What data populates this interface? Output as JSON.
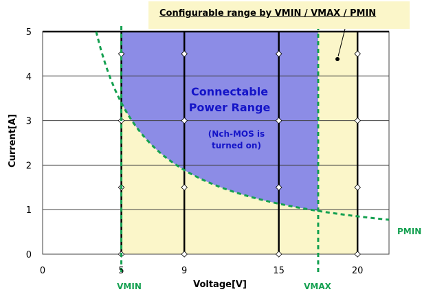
{
  "chart_data": {
    "type": "area",
    "title": "",
    "xlabel": "Voltage[V]",
    "ylabel": "Current[A]",
    "xlim": [
      0,
      22
    ],
    "ylim": [
      0,
      5
    ],
    "x_ticks": [
      {
        "value": 0,
        "label": "0"
      },
      {
        "value": 5,
        "label": "5"
      },
      {
        "value": 9,
        "label": "9"
      },
      {
        "value": 15,
        "label": "15"
      },
      {
        "value": 20,
        "label": "20"
      }
    ],
    "y_ticks": [
      0,
      1,
      2,
      3,
      4,
      5
    ],
    "grid": true,
    "vertical_bold_lines": [
      5,
      9,
      15,
      20
    ],
    "thresholds": {
      "vmin": {
        "label": "VMIN",
        "value": 5
      },
      "vmax": {
        "label": "VMAX",
        "value": 17.5
      },
      "pmin": {
        "label": "PMIN",
        "watts": 17
      }
    },
    "series": [
      {
        "name": "PMIN",
        "x": [
          3.4,
          5,
          7,
          9,
          11,
          13,
          15,
          17.5,
          20,
          22
        ],
        "y": [
          5.0,
          3.4,
          2.43,
          1.89,
          1.55,
          1.31,
          1.13,
          0.97,
          0.85,
          0.77
        ]
      }
    ],
    "regions": {
      "configurable": {
        "x_range": [
          5,
          20
        ],
        "y_range": [
          0,
          5
        ]
      },
      "connectable": {
        "x_range": [
          5,
          17.5
        ],
        "y_max": 5
      }
    },
    "annotations": {
      "callout": "Configurable range by VMIN / VMAX / PMIN",
      "connectable_line1": "Connectable",
      "connectable_line2": "Power Range",
      "nch_line1": "(Nch-MOS is",
      "nch_line2": "turned on)"
    },
    "colors": {
      "configurable_fill": "#fbf6c9",
      "connectable_fill": "#8c8ce6",
      "connectable_text": "#1414c8",
      "threshold_line": "#14a050"
    }
  }
}
